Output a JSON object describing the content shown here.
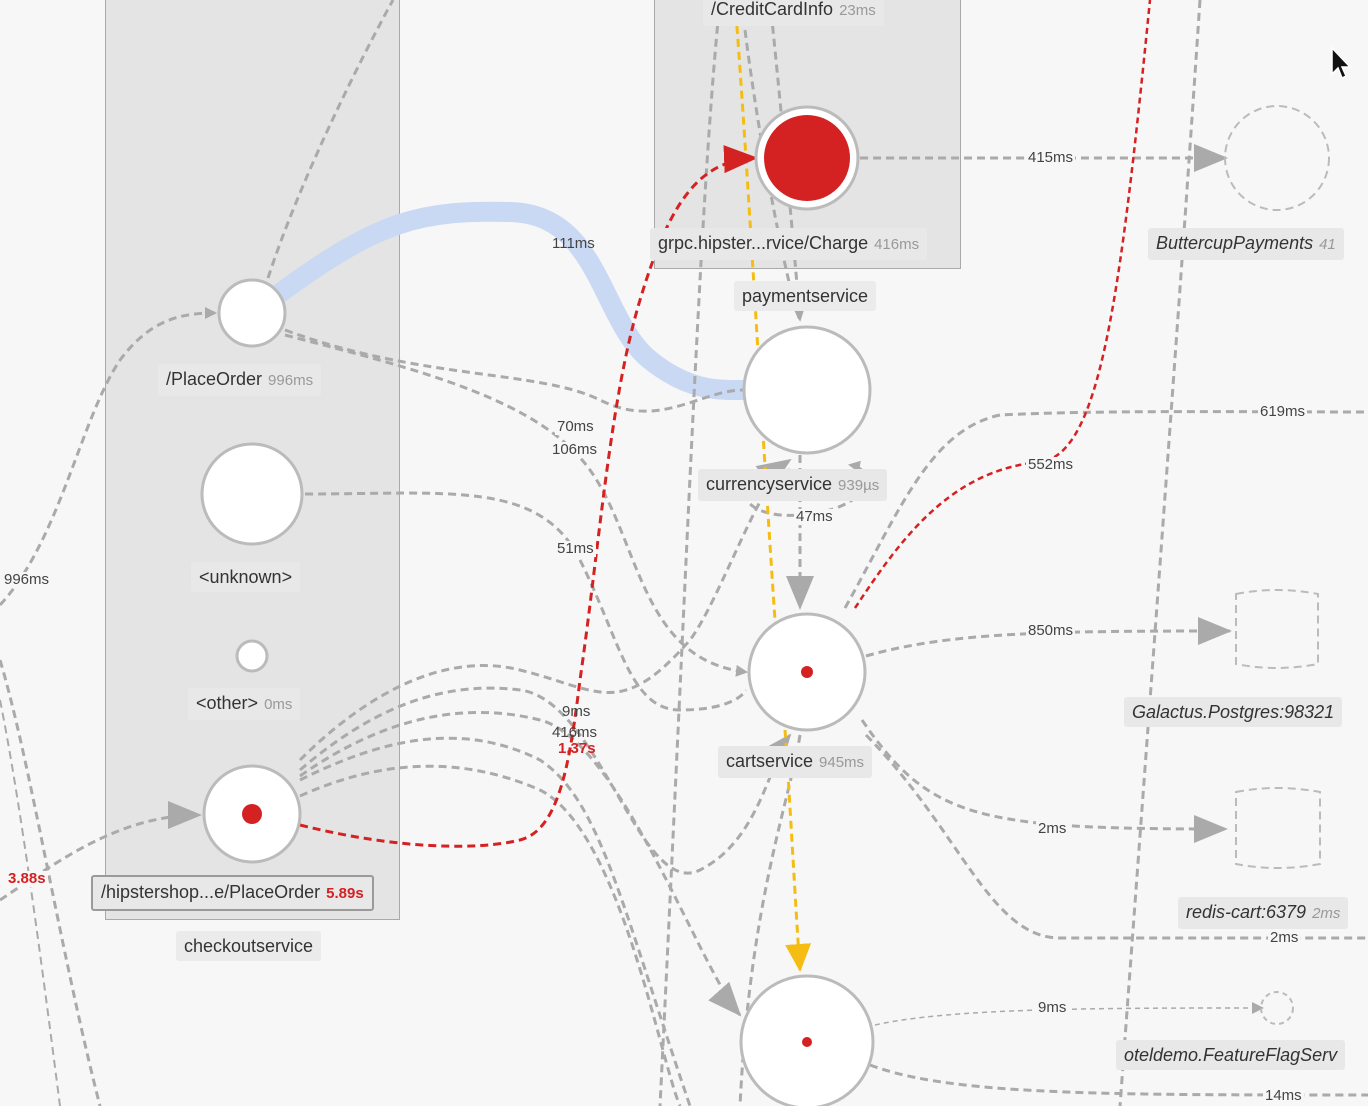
{
  "groups": {
    "checkout": {
      "name": "checkoutservice"
    },
    "payment": {
      "name": "paymentservice"
    }
  },
  "nodes": {
    "place_order": {
      "label": "/PlaceOrder",
      "time": "996ms"
    },
    "unknown": {
      "label": "<unknown>",
      "time": ""
    },
    "other": {
      "label": "<other>",
      "time": "0ms"
    },
    "hipster_place_order": {
      "label": "/hipstershop...e/PlaceOrder",
      "time": "5.89s"
    },
    "credit_card_info": {
      "label": "/CreditCardInfo",
      "time": "23ms"
    },
    "grpc_charge": {
      "label": "grpc.hipster...rvice/Charge",
      "time": "416ms"
    },
    "currencyservice": {
      "label": "currencyservice",
      "time": "939µs"
    },
    "cartservice": {
      "label": "cartservice",
      "time": "945ms"
    },
    "buttercup_payments": {
      "label": "ButtercupPayments",
      "time": "41"
    },
    "galactus_postgres": {
      "label": "Galactus.Postgres:98321",
      "time": ""
    },
    "redis_cart": {
      "label": "redis-cart:6379",
      "time": "2ms"
    },
    "feature_flag": {
      "label": "oteldemo.FeatureFlagServ",
      "time": ""
    }
  },
  "edge_labels": {
    "e111": "111ms",
    "e70": "70ms",
    "e106": "106ms",
    "e51": "51ms",
    "e9": "9ms",
    "e416": "416ms",
    "e137": "1.37s",
    "e996": "996ms",
    "e388": "3.88s",
    "e415": "415ms",
    "e47": "47ms",
    "e619": "619ms",
    "e552": "552ms",
    "e850": "850ms",
    "e2a": "2ms",
    "e2b": "2ms",
    "e9b": "9ms",
    "e14": "14ms"
  },
  "colors": {
    "error": "#d42222",
    "highlight": "#f5bd14",
    "path_highlight": "#c9d9f3",
    "edge": "#aaaaaa"
  }
}
